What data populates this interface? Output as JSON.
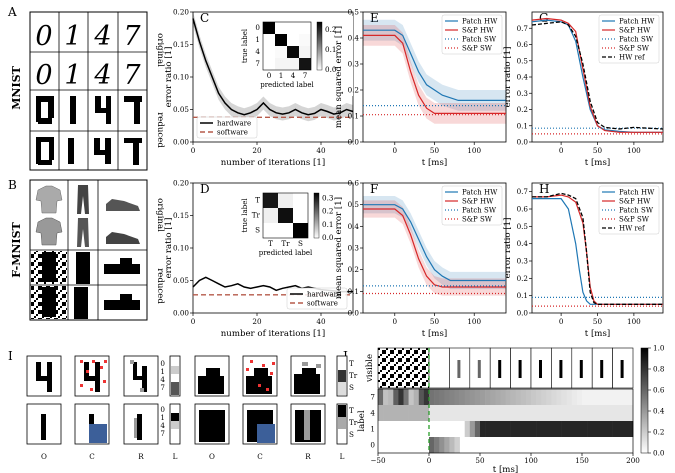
{
  "panel_labels": [
    "A",
    "B",
    "C",
    "D",
    "E",
    "F",
    "G",
    "H",
    "I",
    "J"
  ],
  "row_labels": {
    "mnist": "MNIST",
    "fmnist": "F-MNIST"
  },
  "side_labels": {
    "original": "original",
    "reduced": "reduced"
  },
  "panel_i_labels": [
    "O",
    "C",
    "R",
    "L",
    "O",
    "C",
    "R",
    "L"
  ],
  "colors": {
    "hardware": "#000000",
    "software": "#b55a4a",
    "patch_hw": "#1f77b4",
    "sp_hw": "#d62728",
    "hw_ref": "#000000"
  },
  "chart_data": [
    {
      "id": "C",
      "type": "line",
      "xlabel": "number of iterations [1]",
      "ylabel": "error ratio [1]",
      "xlim": [
        0,
        50
      ],
      "ylim": [
        0,
        0.2
      ],
      "xticks": [
        "0",
        "20",
        "40"
      ],
      "yticks": [
        "0.00",
        "0.05",
        "0.10",
        "0.15",
        "0.20"
      ],
      "series": [
        {
          "name": "hardware",
          "x": [
            0,
            2,
            4,
            6,
            8,
            10,
            12,
            14,
            16,
            18,
            20,
            22,
            24,
            26,
            28,
            30,
            32,
            34,
            36,
            38,
            40,
            42,
            44,
            46,
            48,
            50
          ],
          "values": [
            0.19,
            0.155,
            0.125,
            0.1,
            0.075,
            0.06,
            0.05,
            0.045,
            0.042,
            0.045,
            0.05,
            0.06,
            0.05,
            0.045,
            0.043,
            0.045,
            0.05,
            0.045,
            0.042,
            0.044,
            0.05,
            0.047,
            0.043,
            0.045,
            0.05,
            0.047
          ]
        },
        {
          "name": "software",
          "x": [
            0,
            50
          ],
          "values": [
            0.038,
            0.038
          ]
        }
      ],
      "legend": "bottom-left",
      "inset": {
        "type": "heatmap",
        "xlabel": "predicted label",
        "ylabel": "true label",
        "labels": [
          "0",
          "1",
          "4",
          "7"
        ],
        "colorbar_ticks": [
          "0.0",
          "0.1",
          "0.2"
        ],
        "matrix": [
          [
            0.25,
            0,
            0,
            0
          ],
          [
            0,
            0.25,
            0,
            0.005
          ],
          [
            0,
            0.005,
            0.24,
            0.01
          ],
          [
            0,
            0.01,
            0.01,
            0.23
          ]
        ]
      }
    },
    {
      "id": "D",
      "type": "line",
      "xlabel": "number of iterations [1]",
      "ylabel": "error ratio [1]",
      "xlim": [
        0,
        50
      ],
      "ylim": [
        0,
        0.2
      ],
      "xticks": [
        "0",
        "20",
        "40"
      ],
      "yticks": [
        "0.00",
        "0.05",
        "0.10",
        "0.15",
        "0.20"
      ],
      "series": [
        {
          "name": "hardware",
          "x": [
            0,
            2,
            4,
            6,
            8,
            10,
            12,
            14,
            16,
            18,
            20,
            22,
            24,
            26,
            28,
            30,
            32,
            34,
            36,
            38,
            40,
            42,
            44,
            46,
            48,
            50
          ],
          "values": [
            0.04,
            0.05,
            0.055,
            0.05,
            0.045,
            0.04,
            0.042,
            0.045,
            0.04,
            0.038,
            0.04,
            0.042,
            0.04,
            0.035,
            0.038,
            0.04,
            0.042,
            0.038,
            0.04,
            0.038,
            0.036,
            0.035,
            0.034,
            0.033,
            0.033,
            0.033
          ]
        },
        {
          "name": "software",
          "x": [
            0,
            50
          ],
          "values": [
            0.028,
            0.028
          ]
        }
      ],
      "legend": "bottom-right",
      "inset": {
        "type": "heatmap",
        "xlabel": "predicted label",
        "ylabel": "true label",
        "labels": [
          "T",
          "Tr",
          "S"
        ],
        "colorbar_ticks": [
          "0.0",
          "0.1",
          "0.2",
          "0.3"
        ],
        "matrix": [
          [
            0.3,
            0.02,
            0.0
          ],
          [
            0.02,
            0.31,
            0.0
          ],
          [
            0.0,
            0.0,
            0.33
          ]
        ]
      }
    },
    {
      "id": "E",
      "type": "line",
      "xlabel": "t [ms]",
      "ylabel": "mean squared error [1]",
      "xlim": [
        -40,
        140
      ],
      "ylim": [
        0,
        0.5
      ],
      "xticks": [
        "0",
        "50",
        "100"
      ],
      "yticks": [
        "0.0",
        "0.1",
        "0.2",
        "0.3",
        "0.4",
        "0.5"
      ],
      "series": [
        {
          "name": "Patch HW",
          "x": [
            -40,
            0,
            10,
            20,
            30,
            40,
            50,
            60,
            70,
            80,
            90,
            100,
            140
          ],
          "values": [
            0.43,
            0.43,
            0.41,
            0.34,
            0.27,
            0.22,
            0.2,
            0.18,
            0.17,
            0.16,
            0.16,
            0.16,
            0.16
          ]
        },
        {
          "name": "S&P HW",
          "x": [
            -40,
            0,
            10,
            20,
            30,
            40,
            50,
            60,
            70,
            80,
            90,
            100,
            140
          ],
          "values": [
            0.41,
            0.41,
            0.38,
            0.27,
            0.18,
            0.13,
            0.11,
            0.11,
            0.11,
            0.11,
            0.11,
            0.11,
            0.11
          ]
        },
        {
          "name": "Patch SW",
          "x": [
            -40,
            140
          ],
          "values": [
            0.14,
            0.14
          ]
        },
        {
          "name": "S&P SW",
          "x": [
            -40,
            140
          ],
          "values": [
            0.105,
            0.105
          ]
        }
      ],
      "legend": "top-right"
    },
    {
      "id": "F",
      "type": "line",
      "xlabel": "t [ms]",
      "ylabel": "mean squared error [1]",
      "xlim": [
        -40,
        140
      ],
      "ylim": [
        0,
        0.6
      ],
      "xticks": [
        "0",
        "50",
        "100"
      ],
      "yticks": [
        "0.0",
        "0.1",
        "0.2",
        "0.3",
        "0.4",
        "0.5",
        "0.6"
      ],
      "series": [
        {
          "name": "Patch HW",
          "x": [
            -40,
            0,
            10,
            20,
            30,
            40,
            50,
            60,
            70,
            80,
            90,
            100,
            140
          ],
          "values": [
            0.5,
            0.5,
            0.48,
            0.42,
            0.34,
            0.26,
            0.2,
            0.17,
            0.15,
            0.15,
            0.15,
            0.15,
            0.15
          ]
        },
        {
          "name": "S&P HW",
          "x": [
            -40,
            0,
            10,
            20,
            30,
            40,
            50,
            60,
            70,
            80,
            90,
            100,
            140
          ],
          "values": [
            0.48,
            0.48,
            0.45,
            0.36,
            0.25,
            0.17,
            0.13,
            0.12,
            0.12,
            0.12,
            0.12,
            0.12,
            0.12
          ]
        },
        {
          "name": "Patch SW",
          "x": [
            -40,
            140
          ],
          "values": [
            0.125,
            0.125
          ]
        },
        {
          "name": "S&P SW",
          "x": [
            -40,
            140
          ],
          "values": [
            0.09,
            0.09
          ]
        }
      ],
      "legend": "top-right"
    },
    {
      "id": "G",
      "type": "line",
      "xlabel": "t [ms]",
      "ylabel": "error ratio [1]",
      "xlim": [
        -40,
        140
      ],
      "ylim": [
        0,
        0.8
      ],
      "xticks": [
        "0",
        "50",
        "100"
      ],
      "yticks": [
        "0.0",
        "0.1",
        "0.2",
        "0.3",
        "0.4",
        "0.5",
        "0.6",
        "0.7"
      ],
      "series": [
        {
          "name": "Patch HW",
          "x": [
            -40,
            -20,
            0,
            10,
            20,
            30,
            40,
            50,
            60,
            80,
            100,
            140
          ],
          "values": [
            0.74,
            0.75,
            0.74,
            0.72,
            0.62,
            0.4,
            0.2,
            0.1,
            0.075,
            0.065,
            0.06,
            0.06
          ]
        },
        {
          "name": "S&P HW",
          "x": [
            -40,
            -20,
            0,
            10,
            20,
            30,
            40,
            50,
            60,
            80,
            100,
            140
          ],
          "values": [
            0.75,
            0.76,
            0.75,
            0.73,
            0.68,
            0.45,
            0.22,
            0.1,
            0.07,
            0.06,
            0.06,
            0.06
          ]
        },
        {
          "name": "Patch SW",
          "x": [
            -40,
            140
          ],
          "values": [
            0.085,
            0.085
          ]
        },
        {
          "name": "S&P SW",
          "x": [
            -40,
            140
          ],
          "values": [
            0.05,
            0.05
          ]
        },
        {
          "name": "HW ref",
          "x": [
            -40,
            -20,
            0,
            10,
            20,
            30,
            40,
            50,
            60,
            80,
            100,
            140
          ],
          "values": [
            0.72,
            0.73,
            0.74,
            0.72,
            0.65,
            0.48,
            0.25,
            0.12,
            0.09,
            0.08,
            0.09,
            0.08
          ]
        }
      ],
      "legend": "top-right"
    },
    {
      "id": "H",
      "type": "line",
      "xlabel": "t [ms]",
      "ylabel": "error ratio [1]",
      "xlim": [
        -40,
        140
      ],
      "ylim": [
        0,
        0.75
      ],
      "xticks": [
        "0",
        "50",
        "100"
      ],
      "yticks": [
        "0.0",
        "0.1",
        "0.2",
        "0.3",
        "0.4",
        "0.5",
        "0.6",
        "0.7"
      ],
      "series": [
        {
          "name": "Patch HW",
          "x": [
            -40,
            -20,
            0,
            10,
            20,
            25,
            30,
            35,
            40,
            50,
            60,
            100,
            140
          ],
          "values": [
            0.66,
            0.66,
            0.66,
            0.6,
            0.4,
            0.25,
            0.12,
            0.07,
            0.05,
            0.05,
            0.05,
            0.05,
            0.05
          ]
        },
        {
          "name": "S&P HW",
          "x": [
            -40,
            -20,
            0,
            10,
            20,
            30,
            35,
            40,
            45,
            50,
            60,
            100,
            140
          ],
          "values": [
            0.67,
            0.67,
            0.68,
            0.67,
            0.64,
            0.52,
            0.35,
            0.15,
            0.07,
            0.05,
            0.05,
            0.05,
            0.05
          ]
        },
        {
          "name": "Patch SW",
          "x": [
            -40,
            140
          ],
          "values": [
            0.09,
            0.09
          ]
        },
        {
          "name": "S&P SW",
          "x": [
            -40,
            140
          ],
          "values": [
            0.04,
            0.04
          ]
        },
        {
          "name": "HW ref",
          "x": [
            -40,
            -20,
            0,
            10,
            20,
            30,
            35,
            40,
            45,
            50,
            60,
            100,
            140
          ],
          "values": [
            0.67,
            0.67,
            0.69,
            0.68,
            0.66,
            0.55,
            0.35,
            0.12,
            0.06,
            0.05,
            0.05,
            0.05,
            0.05
          ]
        }
      ],
      "legend": "top-right"
    },
    {
      "id": "J",
      "type": "heatmap",
      "xlabel": "t [ms]",
      "ylabel": "label",
      "top_ylabel": "visible",
      "xlim": [
        -50,
        200
      ],
      "xticks": [
        "−50",
        "0",
        "50",
        "100",
        "150",
        "200"
      ],
      "rows": [
        "7",
        "4",
        "1",
        "0"
      ],
      "colorbar_ticks": [
        "0.0",
        "0.2",
        "0.4",
        "0.6",
        "0.8",
        "1.0"
      ],
      "marker_x": 0
    }
  ]
}
